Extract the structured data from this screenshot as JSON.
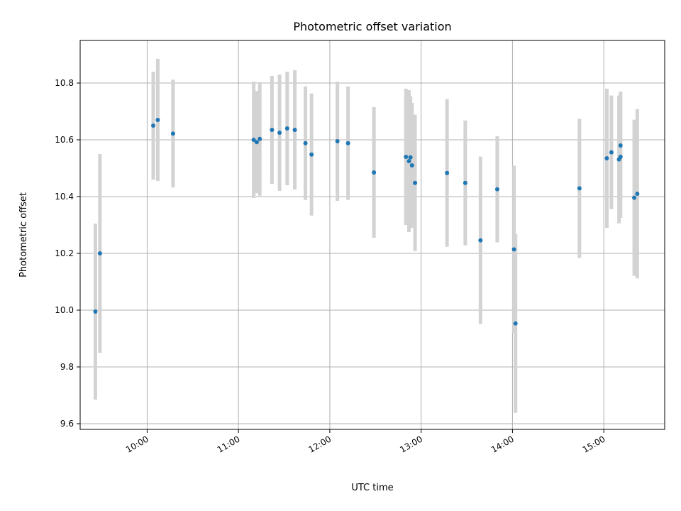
{
  "chart_data": {
    "type": "scatter",
    "title": "Photometric offset variation",
    "xlabel": "UTC time",
    "ylabel": "Photometric offset",
    "grid": true,
    "xlim": [
      "09:16",
      "15:40"
    ],
    "ylim": [
      9.58,
      10.95
    ],
    "x_ticks": [
      "10:00",
      "11:00",
      "12:00",
      "13:00",
      "14:00",
      "15:00"
    ],
    "y_ticks": [
      9.6,
      9.8,
      10.0,
      10.2,
      10.4,
      10.6,
      10.8
    ],
    "colors": {
      "point": "#1f77b4",
      "error_bar": "#d3d3d3",
      "grid": "#b0b0b0",
      "axes": "#000000"
    },
    "points": [
      {
        "x": "09:26",
        "y": 9.995,
        "err": 0.31
      },
      {
        "x": "09:29",
        "y": 10.2,
        "err": 0.35
      },
      {
        "x": "10:04",
        "y": 10.65,
        "err": 0.19
      },
      {
        "x": "10:07",
        "y": 10.67,
        "err": 0.215
      },
      {
        "x": "10:17",
        "y": 10.622,
        "err": 0.19
      },
      {
        "x": "11:10",
        "y": 10.6,
        "err": 0.205
      },
      {
        "x": "11:12",
        "y": 10.592,
        "err": 0.18
      },
      {
        "x": "11:14",
        "y": 10.603,
        "err": 0.2
      },
      {
        "x": "11:22",
        "y": 10.635,
        "err": 0.19
      },
      {
        "x": "11:27",
        "y": 10.625,
        "err": 0.205
      },
      {
        "x": "11:32",
        "y": 10.64,
        "err": 0.2
      },
      {
        "x": "11:37",
        "y": 10.635,
        "err": 0.21
      },
      {
        "x": "11:44",
        "y": 10.588,
        "err": 0.2
      },
      {
        "x": "11:48",
        "y": 10.548,
        "err": 0.215
      },
      {
        "x": "12:05",
        "y": 10.595,
        "err": 0.21
      },
      {
        "x": "12:12",
        "y": 10.588,
        "err": 0.2
      },
      {
        "x": "12:29",
        "y": 10.485,
        "err": 0.23
      },
      {
        "x": "12:50",
        "y": 10.54,
        "err": 0.24
      },
      {
        "x": "12:52",
        "y": 10.525,
        "err": 0.25
      },
      {
        "x": "12:53",
        "y": 10.538,
        "err": 0.215
      },
      {
        "x": "12:54",
        "y": 10.51,
        "err": 0.22
      },
      {
        "x": "12:56",
        "y": 10.448,
        "err": 0.24
      },
      {
        "x": "13:17",
        "y": 10.483,
        "err": 0.26
      },
      {
        "x": "13:29",
        "y": 10.448,
        "err": 0.22
      },
      {
        "x": "13:39",
        "y": 10.246,
        "err": 0.295
      },
      {
        "x": "13:50",
        "y": 10.426,
        "err": 0.187
      },
      {
        "x": "14:01",
        "y": 10.214,
        "err": 0.295
      },
      {
        "x": "14:02",
        "y": 9.953,
        "err": 0.315
      },
      {
        "x": "14:44",
        "y": 10.429,
        "err": 0.245
      },
      {
        "x": "15:02",
        "y": 10.535,
        "err": 0.245
      },
      {
        "x": "15:05",
        "y": 10.556,
        "err": 0.2
      },
      {
        "x": "15:10",
        "y": 10.531,
        "err": 0.225
      },
      {
        "x": "15:11",
        "y": 10.58,
        "err": 0.19
      },
      {
        "x": "15:11",
        "y": 10.54,
        "err": 0.215
      },
      {
        "x": "15:20",
        "y": 10.396,
        "err": 0.275
      },
      {
        "x": "15:22",
        "y": 10.41,
        "err": 0.298
      }
    ]
  }
}
